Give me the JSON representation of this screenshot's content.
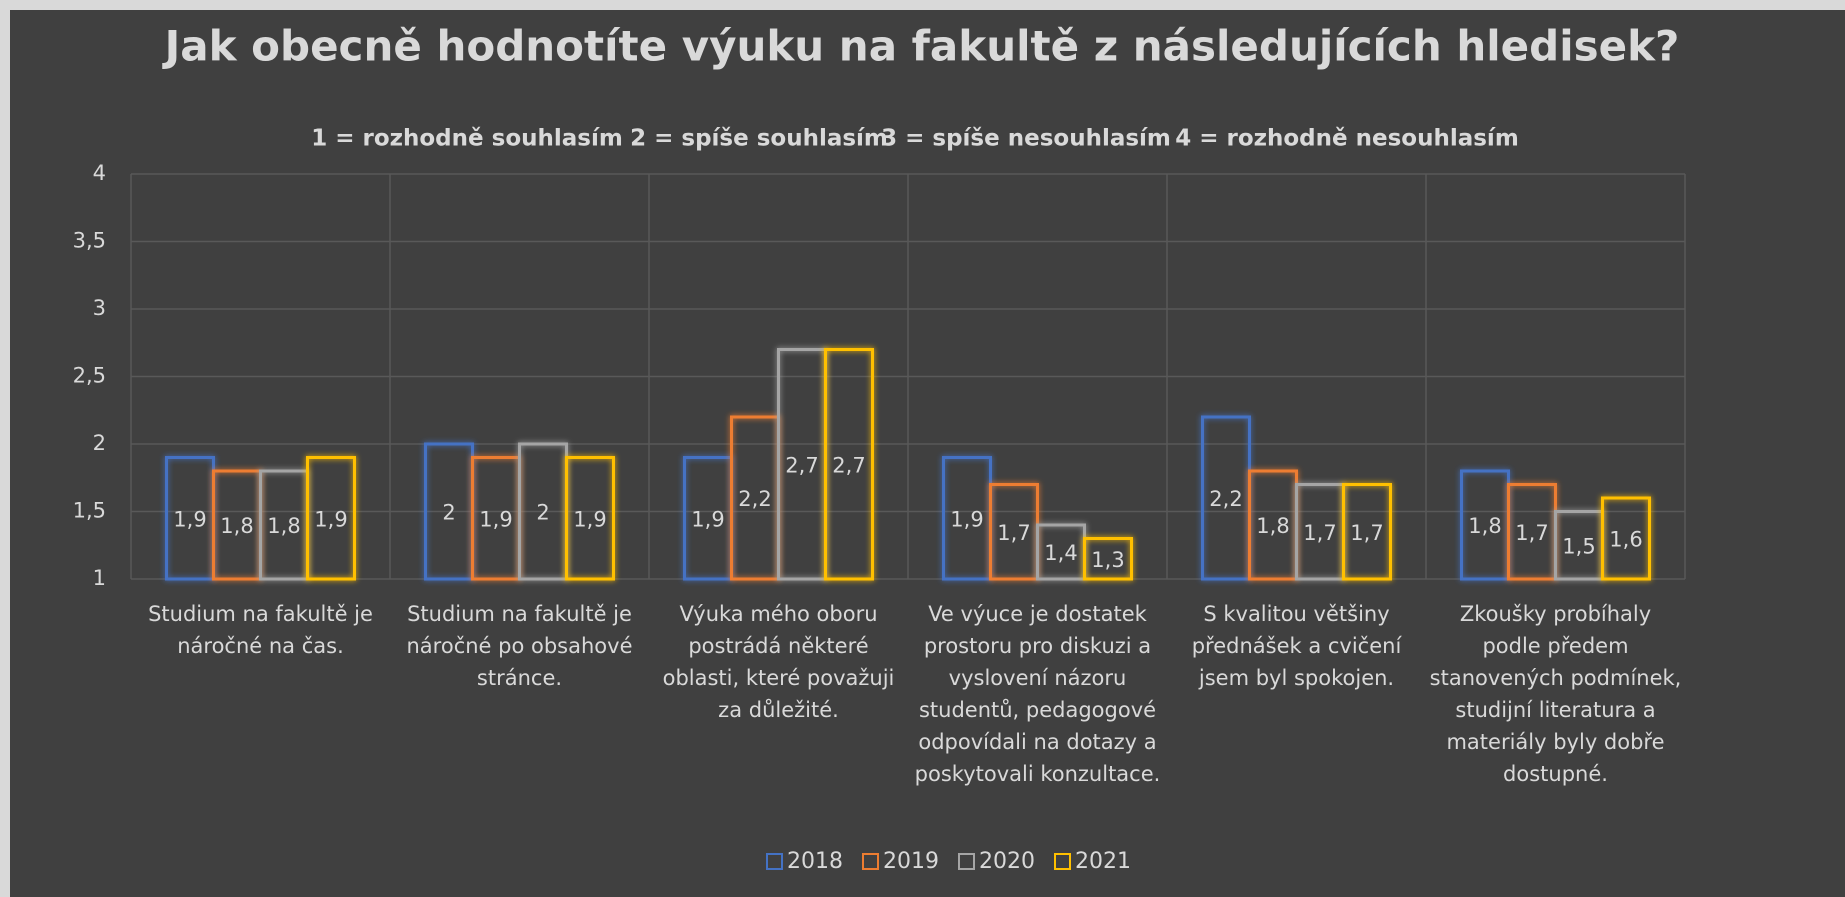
{
  "chart_data": {
    "type": "bar",
    "title": "Jak obecně hodnotíte výuku na fakultě z následujících hledisek?",
    "subtitle": [
      "1 = rozhodně souhlasím",
      "2 = spíše souhlasím",
      "3 = spíše nesouhlasím",
      "4 = rozhodně nesouhlasím"
    ],
    "categories": [
      "Studium na fakultě je náročné na čas.",
      "Studium na fakultě je náročné po obsahové stránce.",
      "Výuka mého oboru postrádá některé oblasti, které považuji za důležité.",
      "Ve výuce je dostatek prostoru pro diskuzi a vyslovení názoru studentů, pedagogové odpovídali na dotazy a poskytovali konzultace.",
      "S kvalitou většiny přednášek a cvičení jsem byl spokojen.",
      "Zkoušky probíhaly podle předem stanovených podmínek, studijní literatura a materiály byly dobře dostupné."
    ],
    "series": [
      {
        "name": "2018",
        "color": "#4472c4",
        "values": [
          1.9,
          2,
          1.9,
          1.9,
          2.2,
          1.8
        ],
        "value_labels": [
          "1,9",
          "2",
          "1,9",
          "1,9",
          "2,2",
          "1,8"
        ]
      },
      {
        "name": "2019",
        "color": "#ed7d31",
        "values": [
          1.8,
          1.9,
          2.2,
          1.7,
          1.8,
          1.7
        ],
        "value_labels": [
          "1,8",
          "1,9",
          "2,2",
          "1,7",
          "1,8",
          "1,7"
        ]
      },
      {
        "name": "2020",
        "color": "#a5a5a5",
        "values": [
          1.8,
          2,
          2.7,
          1.4,
          1.7,
          1.5
        ],
        "value_labels": [
          "1,8",
          "2",
          "2,7",
          "1,4",
          "1,7",
          "1,5"
        ]
      },
      {
        "name": "2021",
        "color": "#ffc000",
        "values": [
          1.9,
          1.9,
          2.7,
          1.3,
          1.7,
          1.6
        ],
        "value_labels": [
          "1,9",
          "1,9",
          "2,7",
          "1,3",
          "1,7",
          "1,6"
        ]
      }
    ],
    "ylim": [
      1,
      4
    ],
    "yticks": [
      1,
      {
        "value": 1.5,
        "label": "1,5"
      },
      2,
      {
        "value": 2.5,
        "label": "2,5"
      },
      3,
      {
        "value": 3.5,
        "label": "3,5"
      },
      4
    ],
    "grid": true,
    "legend": "bottom"
  }
}
